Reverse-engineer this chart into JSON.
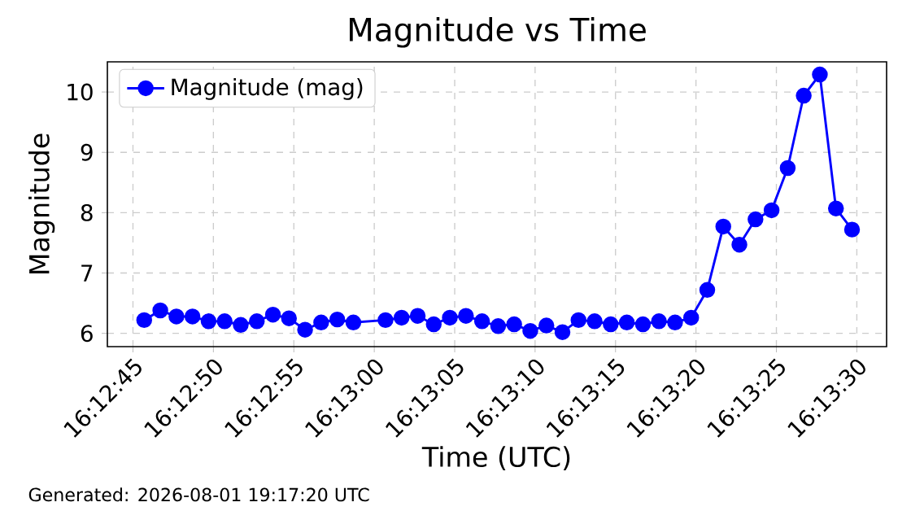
{
  "chart_data": {
    "type": "line",
    "title": "Magnitude vs Time",
    "xlabel": "Time (UTC)",
    "ylabel": "Magnitude",
    "x": [
      16.212694,
      16.212972,
      16.21325,
      16.213528,
      16.213806,
      16.214083,
      16.214361,
      16.214639,
      16.214917,
      16.215194,
      16.215472,
      16.21575,
      16.216028,
      16.216306,
      16.216861,
      16.217139,
      16.217417,
      16.217694,
      16.217972,
      16.21825,
      16.218528,
      16.218806,
      16.219083,
      16.219361,
      16.219639,
      16.219917,
      16.220194,
      16.220472,
      16.22075,
      16.221028,
      16.221306,
      16.221583,
      16.221861,
      16.222139,
      16.222417,
      16.222694,
      16.222972,
      16.22325,
      16.223528,
      16.223806,
      16.224083,
      16.224361,
      16.224639,
      16.224917
    ],
    "series": [
      {
        "name": "Magnitude (mag)",
        "color": "#0000ff",
        "values": [
          6.22,
          6.38,
          6.28,
          6.28,
          6.2,
          6.2,
          6.14,
          6.2,
          6.31,
          6.25,
          6.06,
          6.18,
          6.23,
          6.18,
          6.22,
          6.26,
          6.29,
          6.15,
          6.26,
          6.29,
          6.2,
          6.12,
          6.15,
          6.04,
          6.13,
          6.02,
          6.22,
          6.2,
          6.15,
          6.18,
          6.15,
          6.2,
          6.18,
          6.26,
          6.72,
          7.77,
          7.47,
          7.89,
          8.04,
          8.74,
          9.94,
          10.29,
          8.07,
          7.72
        ]
      }
    ],
    "xlim": [
      16.212058,
      16.225514
    ],
    "ylim": [
      5.78,
      10.5
    ],
    "xticks": [
      {
        "value": 16.2125,
        "label": "16:12:45"
      },
      {
        "value": 16.213889,
        "label": "16:12:50"
      },
      {
        "value": 16.215278,
        "label": "16:12:55"
      },
      {
        "value": 16.216667,
        "label": "16:13:00"
      },
      {
        "value": 16.218056,
        "label": "16:13:05"
      },
      {
        "value": 16.219444,
        "label": "16:13:10"
      },
      {
        "value": 16.220833,
        "label": "16:13:15"
      },
      {
        "value": 16.222222,
        "label": "16:13:20"
      },
      {
        "value": 16.223611,
        "label": "16:13:25"
      },
      {
        "value": 16.225,
        "label": "16:13:30"
      }
    ],
    "yticks": [
      6,
      7,
      8,
      9,
      10
    ],
    "grid": true,
    "legend": "top left",
    "marker": "circle",
    "line_style": "solid",
    "annotations": [
      "Generated: 2026-08-01 19:17:20 UTC"
    ]
  }
}
